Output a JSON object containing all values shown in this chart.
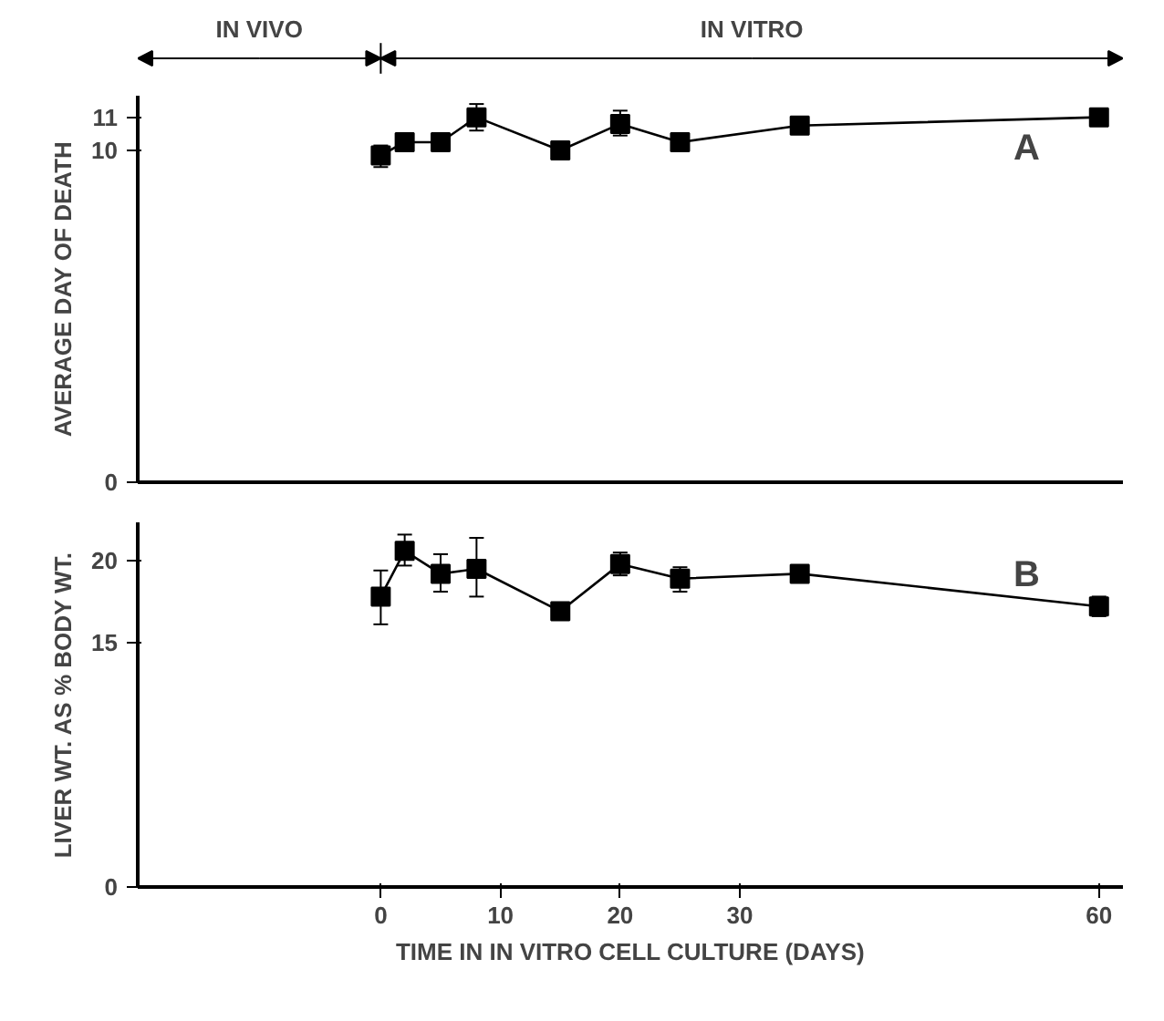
{
  "chart_data": [
    {
      "type": "line",
      "ylabel": "AVERAGE DAY OF DEATH",
      "x": [
        0,
        2,
        5,
        8,
        15,
        20,
        25,
        35,
        60
      ],
      "marker": "square",
      "tick_labels": "y",
      "series": [
        {
          "color": "#000000",
          "values": [
            9.85,
            10.25,
            10.25,
            11.0,
            10.0,
            10.8,
            10.25,
            10.75,
            11.0
          ],
          "errors": [
            [
              9.5,
              10.15
            ],
            [
              10.0,
              10.5
            ],
            [
              10.0,
              10.5
            ],
            [
              10.6,
              11.4
            ],
            null,
            [
              10.45,
              11.2
            ],
            [
              10.0,
              10.5
            ],
            [
              10.5,
              11.0
            ],
            null
          ]
        }
      ],
      "xlim": [
        -20.3,
        62
      ],
      "ylim": [
        0,
        11.65
      ],
      "yticks": [
        0,
        10,
        11
      ],
      "annotations": [
        "IN VIVO",
        "IN VITRO",
        "A"
      ]
    },
    {
      "type": "line",
      "ylabel": "LIVER WT. AS % BODY WT.",
      "xlabel": "TIME IN IN VITRO CELL CULTURE (DAYS)",
      "x": [
        0,
        2,
        5,
        8,
        15,
        20,
        25,
        35,
        60
      ],
      "marker": "square",
      "series": [
        {
          "color": "#000000",
          "values": [
            17.8,
            20.6,
            19.2,
            19.5,
            16.9,
            19.8,
            18.9,
            19.2,
            17.2
          ],
          "errors": [
            [
              16.1,
              19.4
            ],
            [
              19.7,
              21.6
            ],
            [
              18.1,
              20.4
            ],
            [
              17.8,
              21.4
            ],
            [
              16.6,
              17.2
            ],
            [
              19.1,
              20.5
            ],
            [
              18.1,
              19.6
            ],
            [
              18.8,
              19.6
            ],
            [
              16.6,
              17.8
            ]
          ]
        }
      ],
      "xlim": [
        -20.3,
        62
      ],
      "xticks": [
        0,
        10,
        20,
        30,
        60
      ],
      "ylim": [
        0,
        22.35
      ],
      "yticks": [
        0,
        15,
        20
      ],
      "annotations": [
        "B"
      ]
    }
  ]
}
